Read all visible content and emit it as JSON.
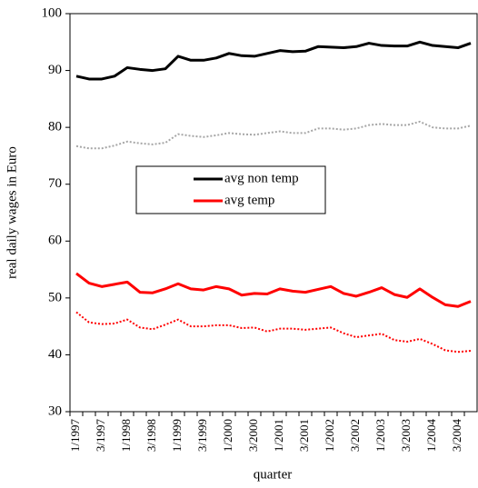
{
  "chart_data": {
    "type": "line",
    "xlabel": "quarter",
    "ylabel": "real daily wages in Euro",
    "categories": [
      "1/1997",
      null,
      "3/1997",
      null,
      "1/1998",
      null,
      "3/1998",
      null,
      "1/1999",
      null,
      "3/1999",
      null,
      "1/2000",
      null,
      "3/2000",
      null,
      "1/2001",
      null,
      "3/2001",
      null,
      "1/2002",
      null,
      "3/2002",
      null,
      "1/2003",
      null,
      "3/2003",
      null,
      "1/2004",
      null,
      "3/2004",
      null
    ],
    "series": [
      {
        "name": "avg non temp",
        "color": "#000000",
        "dash": "solid",
        "values": [
          89,
          88.5,
          88.5,
          89,
          90.5,
          90.2,
          90,
          90.3,
          92.5,
          91.8,
          91.8,
          92.2,
          93,
          92.6,
          92.5,
          93,
          93.5,
          93.3,
          93.4,
          94.2,
          94.1,
          94,
          94.2,
          94.8,
          94.4,
          94.3,
          94.3,
          95,
          94.4,
          94.2,
          94,
          94.8
        ]
      },
      {
        "color": "#a6a6a6",
        "dash": "dotted",
        "values": [
          76.7,
          76.3,
          76.3,
          76.8,
          77.5,
          77.2,
          77,
          77.3,
          78.8,
          78.5,
          78.3,
          78.6,
          79,
          78.8,
          78.7,
          79,
          79.3,
          79,
          79,
          79.8,
          79.8,
          79.6,
          79.8,
          80.4,
          80.6,
          80.4,
          80.4,
          81,
          80,
          79.8,
          79.8,
          80.3
        ]
      },
      {
        "name": "avg temp",
        "color": "#ff0000",
        "dash": "solid",
        "values": [
          54.3,
          52.6,
          52,
          52.4,
          52.8,
          51,
          50.9,
          51.6,
          52.5,
          51.6,
          51.4,
          52,
          51.6,
          50.5,
          50.8,
          50.7,
          51.6,
          51.2,
          51,
          51.5,
          52,
          50.8,
          50.3,
          51,
          51.8,
          50.6,
          50.1,
          51.6,
          50.1,
          48.8,
          48.5,
          49.4
        ]
      },
      {
        "color": "#ff0000",
        "dash": "dotted",
        "values": [
          47.5,
          45.7,
          45.4,
          45.5,
          46.2,
          44.8,
          44.5,
          45.3,
          46.2,
          45,
          45,
          45.2,
          45.2,
          44.7,
          44.8,
          44.1,
          44.6,
          44.6,
          44.4,
          44.6,
          44.8,
          43.8,
          43.1,
          43.4,
          43.7,
          42.6,
          42.3,
          42.8,
          41.9,
          40.8,
          40.5,
          40.7
        ]
      }
    ],
    "ylim": [
      30,
      100
    ],
    "yticks": [
      30,
      40,
      50,
      60,
      70,
      80,
      90,
      100
    ]
  }
}
